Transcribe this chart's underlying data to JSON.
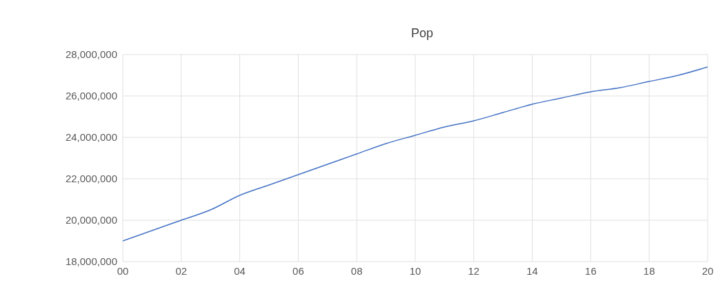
{
  "chart_data": {
    "type": "line",
    "title": "Pop",
    "x": [
      0,
      1,
      2,
      3,
      4,
      5,
      6,
      7,
      8,
      9,
      10,
      11,
      12,
      13,
      14,
      15,
      16,
      17,
      18,
      19,
      20
    ],
    "series": [
      {
        "color": "#4472c4",
        "values": [
          19000000,
          19500000,
          20000000,
          20500000,
          21200000,
          21700000,
          22200000,
          22700000,
          23200000,
          23700000,
          24100000,
          24500000,
          24800000,
          25200000,
          25600000,
          25900000,
          26200000,
          26400000,
          26700000,
          27000000,
          27400000
        ]
      }
    ],
    "xlim": [
      0,
      20
    ],
    "xticks": [
      {
        "value": 0,
        "label": "00"
      },
      {
        "value": 2,
        "label": "02"
      },
      {
        "value": 4,
        "label": "04"
      },
      {
        "value": 6,
        "label": "06"
      },
      {
        "value": 8,
        "label": "08"
      },
      {
        "value": 10,
        "label": "10"
      },
      {
        "value": 12,
        "label": "12"
      },
      {
        "value": 14,
        "label": "14"
      },
      {
        "value": 16,
        "label": "16"
      },
      {
        "value": 18,
        "label": "18"
      },
      {
        "value": 20,
        "label": "20"
      }
    ],
    "ylim": [
      18000000,
      28000000
    ],
    "yticks": [
      {
        "value": 18000000,
        "label": "18,000,000"
      },
      {
        "value": 20000000,
        "label": "20,000,000"
      },
      {
        "value": 22000000,
        "label": "22,000,000"
      },
      {
        "value": 24000000,
        "label": "24,000,000"
      },
      {
        "value": 26000000,
        "label": "26,000,000"
      },
      {
        "value": 28000000,
        "label": "28,000,000"
      }
    ],
    "grid": true,
    "legend": false,
    "marker": "none",
    "line_style": "solid"
  }
}
